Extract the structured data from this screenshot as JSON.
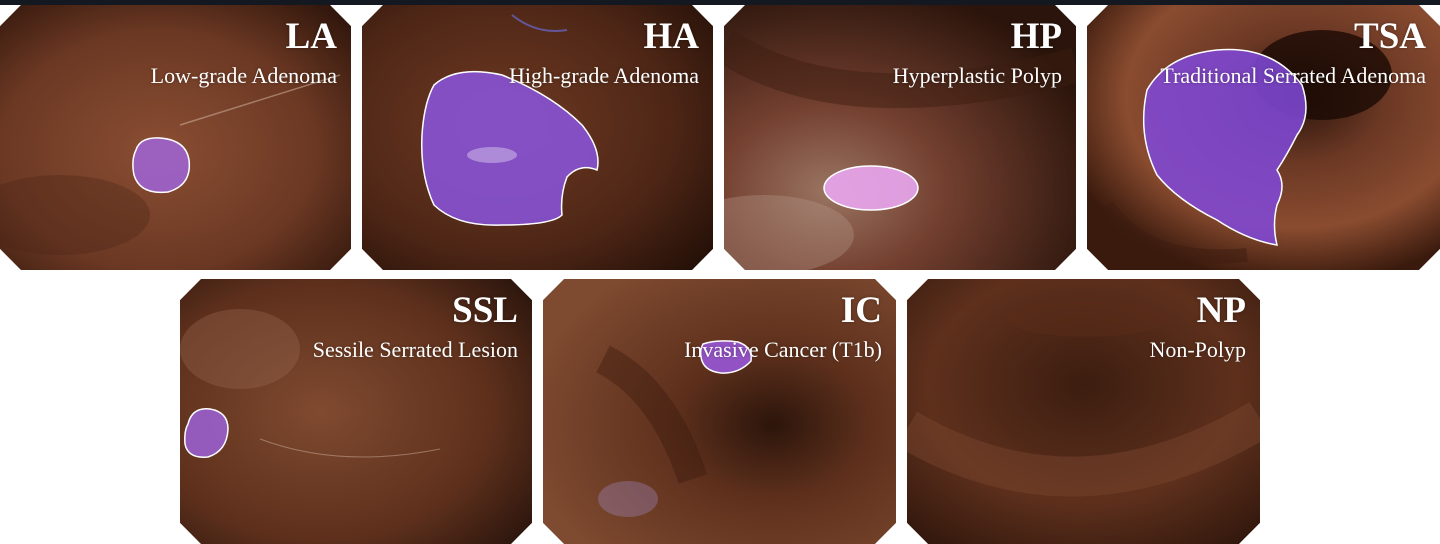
{
  "panels": [
    {
      "id": "la",
      "code": "LA",
      "name": "Low-grade Adenoma"
    },
    {
      "id": "ha",
      "code": "HA",
      "name": "High-grade Adenoma"
    },
    {
      "id": "hp",
      "code": "HP",
      "name": "Hyperplastic Polyp"
    },
    {
      "id": "tsa",
      "code": "TSA",
      "name": "Traditional Serrated Adenoma"
    },
    {
      "id": "ssl",
      "code": "SSL",
      "name": "Sessile Serrated Lesion"
    },
    {
      "id": "ic",
      "code": "IC",
      "name": "Invasive Cancer (T1b)"
    },
    {
      "id": "np",
      "code": "NP",
      "name": "Non-Polyp"
    }
  ],
  "colors": {
    "tissue": "#6b3a24",
    "tissue_dark": "#2a130b",
    "polyp_mask": "#9b5ce0",
    "label": "#ffffff"
  }
}
